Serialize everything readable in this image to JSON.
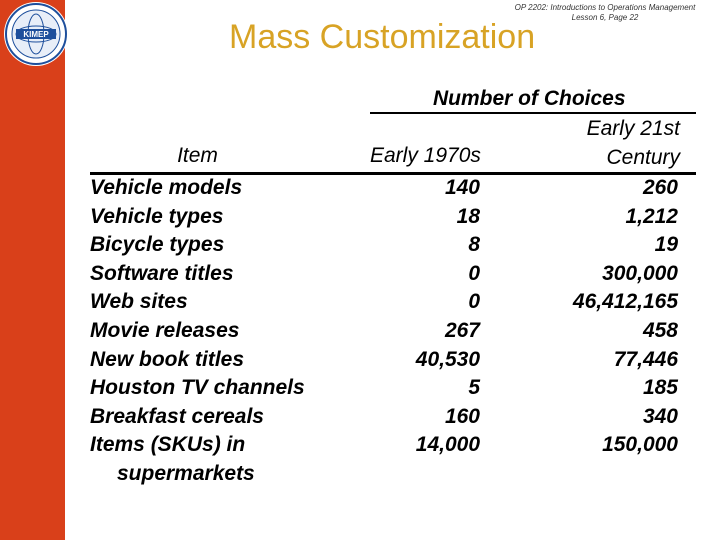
{
  "header": {
    "title": "Mass Customization",
    "course_note_line1": "OP 2202: Introductions to Operations Management",
    "course_note_line2": "Lesson 6, Page 22",
    "logo_text": "KIMEP"
  },
  "table": {
    "group_header": "Number of Choices",
    "col_item": "Item",
    "col_1970s": "Early 1970s",
    "col_21st_line1": "Early 21st",
    "col_21st_line2": "Century",
    "rows": [
      {
        "item": "Vehicle models",
        "early_1970s": "140",
        "early_21st": "260"
      },
      {
        "item": "Vehicle types",
        "early_1970s": "18",
        "early_21st": "1,212"
      },
      {
        "item": "Bicycle types",
        "early_1970s": "8",
        "early_21st": "19"
      },
      {
        "item": "Software titles",
        "early_1970s": "0",
        "early_21st": "300,000"
      },
      {
        "item": "Web sites",
        "early_1970s": "0",
        "early_21st": "46,412,165"
      },
      {
        "item": "Movie releases",
        "early_1970s": "267",
        "early_21st": "458"
      },
      {
        "item": "New book titles",
        "early_1970s": "40,530",
        "early_21st": "77,446"
      },
      {
        "item": "Houston TV channels",
        "early_1970s": "5",
        "early_21st": "185"
      },
      {
        "item": "Breakfast cereals",
        "early_1970s": "160",
        "early_21st": "340"
      },
      {
        "item": "Items (SKUs) in",
        "item_line2": "supermarkets",
        "early_1970s": "14,000",
        "early_21st": "150,000"
      }
    ]
  },
  "colors": {
    "accent_bar": "#d9401a",
    "title": "#d8a325"
  }
}
